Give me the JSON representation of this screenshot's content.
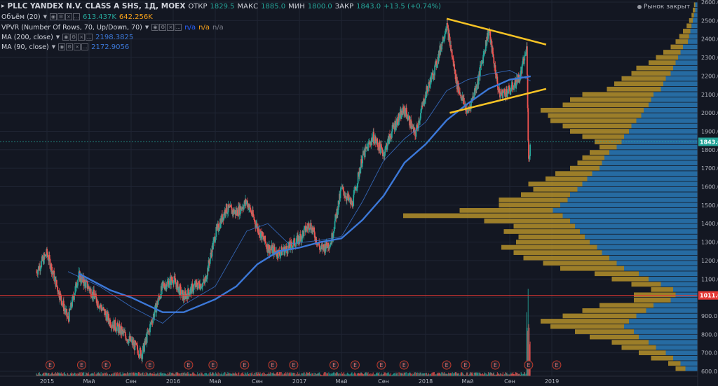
{
  "header": {
    "title": "PLLC YANDEX N.V. CLASS A SHS, 1Д, MOEX",
    "open_label": "ОТКР",
    "open": "1829.5",
    "high_label": "МАКС",
    "high": "1885.0",
    "low_label": "МИН",
    "low": "1800.0",
    "close_label": "ЗАКР",
    "close": "1843.0",
    "change": "+13.5 (+0.74%)",
    "market_status": "Рынок закрыт"
  },
  "indicators": [
    {
      "label": "Объём (20)",
      "values": [
        "613.437K",
        "642.256K"
      ],
      "colors": [
        "#26a69a",
        "#f7a21b"
      ]
    },
    {
      "label": "VPVR (Number Of Rows, 70, Up/Down, 70)",
      "values": [
        "n/a",
        "n/a",
        "n/a"
      ],
      "colors": [
        "#2962ff",
        "#f7a21b",
        "#787b86"
      ]
    },
    {
      "label": "MA (200, close)",
      "values": [
        "2198.3825"
      ],
      "colors": [
        "#3c78d8"
      ]
    },
    {
      "label": "MA (90, close)",
      "values": [
        "2172.9056"
      ],
      "colors": [
        "#3c78d8"
      ]
    }
  ],
  "colors": {
    "background": "#131722",
    "up": "#26a69a",
    "down": "#ef5350",
    "ma": "#3c78d8",
    "trend": "#f7c325",
    "vp_up": "#2a7ab8",
    "vp_down": "#b5902a",
    "hline": "#e53935"
  },
  "chart_data": {
    "type": "candlestick",
    "y_ticks": [
      2600,
      2500,
      2400,
      2300,
      2200,
      2100,
      2000,
      1900,
      1800,
      1700,
      1600,
      1500,
      1400,
      1300,
      1200,
      1100,
      1000,
      900,
      800,
      700,
      600
    ],
    "y_range": [
      600,
      2600
    ],
    "x_ticks": [
      "2015",
      "Май",
      "Сен",
      "2016",
      "Май",
      "Сен",
      "2017",
      "Май",
      "Сен",
      "2018",
      "Май",
      "Сен",
      "2019"
    ],
    "x_tick_dates": [
      "2015-01",
      "2015-05",
      "2015-09",
      "2016-01",
      "2016-05",
      "2016-09",
      "2017-01",
      "2017-05",
      "2017-09",
      "2018-01",
      "2018-05",
      "2018-09",
      "2019-01"
    ],
    "price_keypoints": [
      [
        "2014-12",
        1140
      ],
      [
        "2015-01",
        1240
      ],
      [
        "2015-02",
        1050
      ],
      [
        "2015-03",
        880
      ],
      [
        "2015-04",
        1120
      ],
      [
        "2015-05",
        1050
      ],
      [
        "2015-06",
        960
      ],
      [
        "2015-07",
        870
      ],
      [
        "2015-08",
        820
      ],
      [
        "2015-09",
        760
      ],
      [
        "2015-10",
        690
      ],
      [
        "2015-11",
        880
      ],
      [
        "2015-12",
        1060
      ],
      [
        "2016-01",
        1100
      ],
      [
        "2016-02",
        1000
      ],
      [
        "2016-03",
        1060
      ],
      [
        "2016-04",
        1080
      ],
      [
        "2016-05",
        1340
      ],
      [
        "2016-06",
        1480
      ],
      [
        "2016-07",
        1460
      ],
      [
        "2016-08",
        1520
      ],
      [
        "2016-09",
        1380
      ],
      [
        "2016-10",
        1270
      ],
      [
        "2016-11",
        1240
      ],
      [
        "2016-12",
        1270
      ],
      [
        "2017-01",
        1320
      ],
      [
        "2017-02",
        1400
      ],
      [
        "2017-03",
        1260
      ],
      [
        "2017-04",
        1300
      ],
      [
        "2017-05",
        1590
      ],
      [
        "2017-06",
        1500
      ],
      [
        "2017-07",
        1760
      ],
      [
        "2017-08",
        1870
      ],
      [
        "2017-09",
        1780
      ],
      [
        "2017-10",
        1930
      ],
      [
        "2017-11",
        2020
      ],
      [
        "2017-12",
        1880
      ],
      [
        "2018-01",
        2100
      ],
      [
        "2018-02",
        2260
      ],
      [
        "2018-03",
        2480
      ],
      [
        "2018-04",
        2150
      ],
      [
        "2018-05",
        2000
      ],
      [
        "2018-06",
        2180
      ],
      [
        "2018-07",
        2450
      ],
      [
        "2018-08",
        2100
      ],
      [
        "2018-09",
        2120
      ],
      [
        "2018-10",
        2200
      ],
      [
        "2018-10-20",
        2350
      ],
      [
        "2018-10-25",
        1730
      ],
      [
        "2018-10-31",
        1843
      ]
    ],
    "ma200": [
      [
        "2015-04",
        1130
      ],
      [
        "2015-07",
        1040
      ],
      [
        "2015-09",
        1000
      ],
      [
        "2015-12",
        920
      ],
      [
        "2016-02",
        920
      ],
      [
        "2016-05",
        990
      ],
      [
        "2016-07",
        1060
      ],
      [
        "2016-09",
        1180
      ],
      [
        "2016-11",
        1250
      ],
      [
        "2017-01",
        1270
      ],
      [
        "2017-03",
        1300
      ],
      [
        "2017-05",
        1320
      ],
      [
        "2017-07",
        1420
      ],
      [
        "2017-09",
        1550
      ],
      [
        "2017-11",
        1730
      ],
      [
        "2018-01",
        1830
      ],
      [
        "2018-03",
        1960
      ],
      [
        "2018-05",
        2050
      ],
      [
        "2018-07",
        2130
      ],
      [
        "2018-09",
        2180
      ],
      [
        "2018-10-31",
        2198
      ]
    ],
    "ma90": [
      [
        "2015-03",
        1140
      ],
      [
        "2015-06",
        1060
      ],
      [
        "2015-09",
        950
      ],
      [
        "2015-12",
        860
      ],
      [
        "2016-02",
        960
      ],
      [
        "2016-05",
        1060
      ],
      [
        "2016-08",
        1360
      ],
      [
        "2016-10",
        1400
      ],
      [
        "2016-12",
        1290
      ],
      [
        "2017-03",
        1310
      ],
      [
        "2017-05",
        1330
      ],
      [
        "2017-07",
        1520
      ],
      [
        "2017-09",
        1740
      ],
      [
        "2017-11",
        1860
      ],
      [
        "2018-01",
        1950
      ],
      [
        "2018-03",
        2120
      ],
      [
        "2018-05",
        2180
      ],
      [
        "2018-07",
        2210
      ],
      [
        "2018-09",
        2230
      ],
      [
        "2018-10-31",
        2173
      ]
    ],
    "trendlines": [
      {
        "from": [
          "2018-03-01",
          2510
        ],
        "to": [
          "2018-12-15",
          2370
        ]
      },
      {
        "from": [
          "2018-03-10",
          2000
        ],
        "to": [
          "2018-12-15",
          2130
        ]
      }
    ],
    "horizontal_level": 1011.0,
    "current_price": 1843.0,
    "volume_profile": {
      "row_count": 70,
      "up": [
        10,
        14,
        20,
        26,
        34,
        40,
        48,
        52,
        60,
        56,
        50,
        42,
        36,
        22,
        18,
        20,
        30,
        40,
        48,
        60,
        66,
        72,
        78,
        82,
        88,
        92,
        96,
        100,
        104,
        110,
        118,
        112,
        106,
        104,
        98,
        94,
        90,
        86,
        80,
        78,
        76,
        72,
        66,
        62,
        60,
        56,
        54,
        50,
        46,
        44,
        40,
        38,
        36,
        30,
        28,
        26,
        22,
        20,
        18,
        16,
        14,
        12,
        8,
        7,
        6,
        5,
        4,
        3,
        2,
        2
      ],
      "down": [
        8,
        10,
        18,
        22,
        28,
        30,
        40,
        48,
        60,
        72,
        60,
        52,
        44,
        30,
        34,
        18,
        24,
        30,
        36,
        52,
        60,
        70,
        72,
        78,
        60,
        54,
        62,
        50,
        70,
        130,
        76,
        50,
        56,
        40,
        36,
        44,
        34,
        30,
        24,
        20,
        18,
        16,
        14,
        22,
        34,
        48,
        56,
        70,
        76,
        84,
        70,
        66,
        58,
        44,
        40,
        36,
        32,
        30,
        22,
        18,
        14,
        10,
        10,
        8,
        6,
        4,
        3,
        2,
        2,
        1
      ]
    },
    "earnings_label": "E",
    "earnings_dates": [
      "2015-01-10",
      "2015-04-10",
      "2015-06-20",
      "2015-10-25",
      "2016-02-15",
      "2016-04-25",
      "2016-07-25",
      "2016-10-15",
      "2016-12-15",
      "2017-04-10",
      "2017-06-10",
      "2017-08-25",
      "2017-10-30",
      "2018-03-01",
      "2018-04-25",
      "2018-07-20",
      "2018-10-25",
      "2019-01-15"
    ]
  }
}
